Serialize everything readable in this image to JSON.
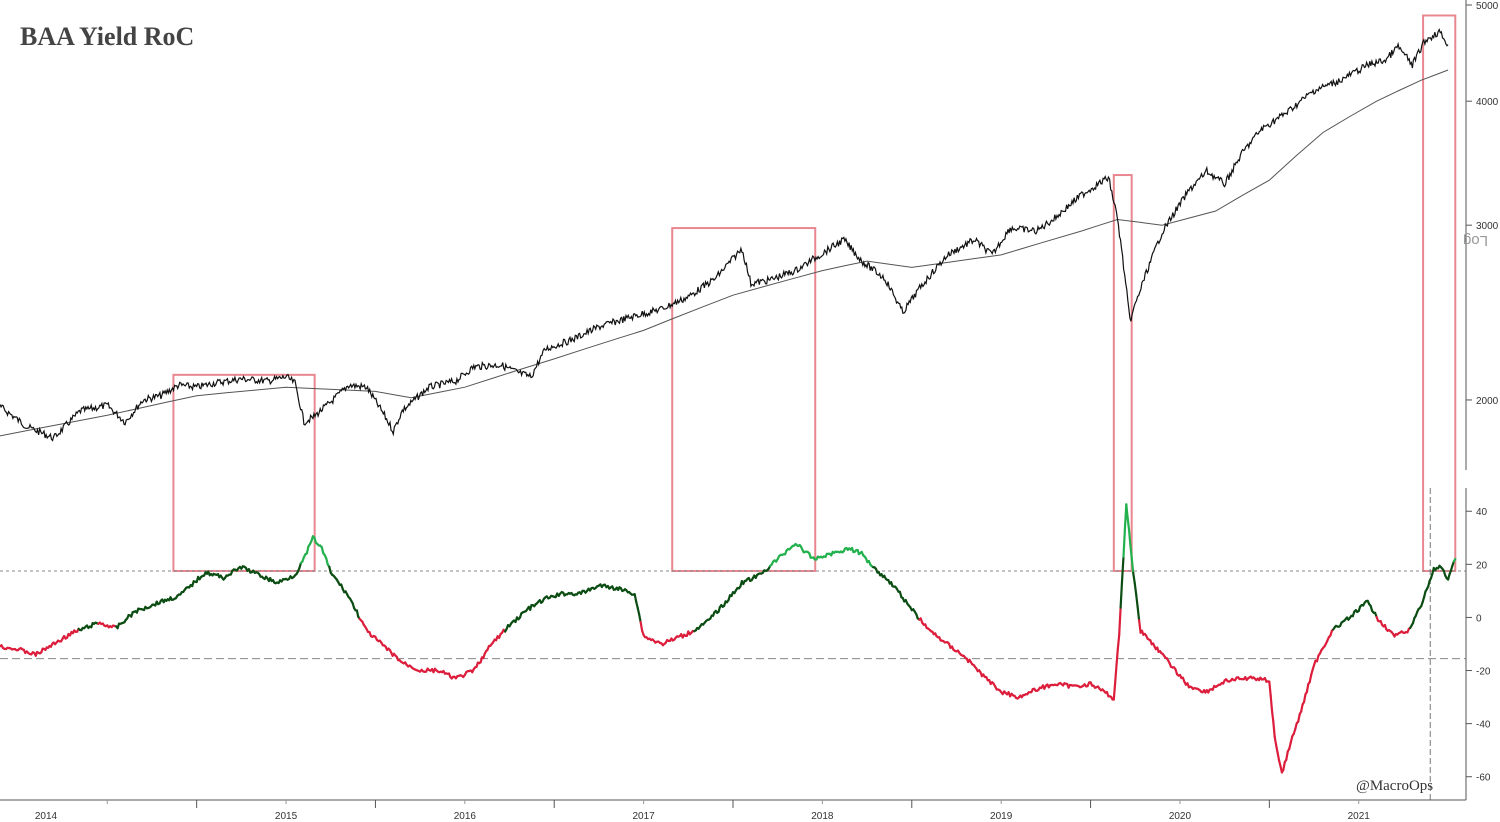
{
  "chart_data": [
    {
      "type": "line",
      "title": "BAA Yield RoC",
      "yscale": "log",
      "yaxis_label": "Log",
      "ylim": [
        1700,
        5000
      ],
      "yticks": [
        2000,
        3000,
        4000,
        5000
      ],
      "x_categories": [
        "2014",
        "2015",
        "2016",
        "2017",
        "2018",
        "2019",
        "2020",
        "2021"
      ],
      "series": [
        {
          "role": "price",
          "color": "#111111",
          "points": [
            [
              2013.9,
              1970
            ],
            [
              2014.05,
              1880
            ],
            [
              2014.2,
              1830
            ],
            [
              2014.35,
              1950
            ],
            [
              2014.5,
              1975
            ],
            [
              2014.6,
              1900
            ],
            [
              2014.7,
              2000
            ],
            [
              2014.8,
              2020
            ],
            [
              2014.9,
              2070
            ],
            [
              2015.0,
              2060
            ],
            [
              2015.1,
              2080
            ],
            [
              2015.25,
              2100
            ],
            [
              2015.4,
              2090
            ],
            [
              2015.5,
              2110
            ],
            [
              2015.55,
              2080
            ],
            [
              2015.6,
              1900
            ],
            [
              2015.65,
              1920
            ],
            [
              2015.75,
              1990
            ],
            [
              2015.85,
              2070
            ],
            [
              2015.95,
              2060
            ],
            [
              2016.05,
              1930
            ],
            [
              2016.1,
              1860
            ],
            [
              2016.15,
              1950
            ],
            [
              2016.3,
              2060
            ],
            [
              2016.45,
              2090
            ],
            [
              2016.55,
              2160
            ],
            [
              2016.7,
              2170
            ],
            [
              2016.8,
              2130
            ],
            [
              2016.87,
              2110
            ],
            [
              2016.95,
              2250
            ],
            [
              2017.1,
              2300
            ],
            [
              2017.25,
              2370
            ],
            [
              2017.45,
              2430
            ],
            [
              2017.6,
              2470
            ],
            [
              2017.75,
              2540
            ],
            [
              2017.9,
              2650
            ],
            [
              2018.05,
              2840
            ],
            [
              2018.1,
              2620
            ],
            [
              2018.2,
              2640
            ],
            [
              2018.35,
              2700
            ],
            [
              2018.5,
              2810
            ],
            [
              2018.62,
              2900
            ],
            [
              2018.72,
              2760
            ],
            [
              2018.85,
              2650
            ],
            [
              2018.95,
              2450
            ],
            [
              2019.05,
              2600
            ],
            [
              2019.2,
              2800
            ],
            [
              2019.35,
              2900
            ],
            [
              2019.45,
              2800
            ],
            [
              2019.55,
              2980
            ],
            [
              2019.7,
              2960
            ],
            [
              2019.8,
              3050
            ],
            [
              2019.95,
              3220
            ],
            [
              2020.1,
              3350
            ],
            [
              2020.15,
              3050
            ],
            [
              2020.22,
              2400
            ],
            [
              2020.3,
              2650
            ],
            [
              2020.4,
              2950
            ],
            [
              2020.55,
              3250
            ],
            [
              2020.65,
              3400
            ],
            [
              2020.75,
              3300
            ],
            [
              2020.85,
              3550
            ],
            [
              2020.95,
              3740
            ],
            [
              2021.1,
              3900
            ],
            [
              2021.25,
              4100
            ],
            [
              2021.4,
              4200
            ],
            [
              2021.55,
              4350
            ],
            [
              2021.65,
              4400
            ],
            [
              2021.72,
              4540
            ],
            [
              2021.8,
              4350
            ],
            [
              2021.87,
              4600
            ],
            [
              2021.95,
              4700
            ],
            [
              2022.0,
              4560
            ]
          ]
        },
        {
          "role": "moving-average",
          "color": "#333333",
          "points": [
            [
              2013.9,
              1840
            ],
            [
              2014.5,
              1930
            ],
            [
              2015.0,
              2020
            ],
            [
              2015.5,
              2060
            ],
            [
              2016.0,
              2040
            ],
            [
              2016.2,
              2010
            ],
            [
              2016.5,
              2060
            ],
            [
              2017.0,
              2200
            ],
            [
              2017.5,
              2350
            ],
            [
              2018.0,
              2550
            ],
            [
              2018.5,
              2700
            ],
            [
              2018.75,
              2760
            ],
            [
              2019.0,
              2720
            ],
            [
              2019.5,
              2800
            ],
            [
              2019.95,
              2960
            ],
            [
              2020.15,
              3040
            ],
            [
              2020.4,
              3000
            ],
            [
              2020.7,
              3100
            ],
            [
              2021.0,
              3330
            ],
            [
              2021.3,
              3720
            ],
            [
              2021.6,
              4000
            ],
            [
              2021.85,
              4200
            ],
            [
              2022.0,
              4300
            ]
          ]
        }
      ]
    },
    {
      "type": "line",
      "ylim": [
        -65,
        48
      ],
      "yticks": [
        40,
        20,
        0,
        -20,
        -40,
        -60
      ],
      "threshold_lines": [
        17.5,
        -15.5
      ],
      "colors": {
        "above_high": "#22b14c",
        "neutral_up": "#0b4d12",
        "low": "#dc1e3c"
      },
      "series": [
        {
          "role": "baa-yield-roc",
          "points": [
            [
              2013.9,
              -11
            ],
            [
              2014.0,
              -12
            ],
            [
              2014.1,
              -14
            ],
            [
              2014.2,
              -10
            ],
            [
              2014.3,
              -6
            ],
            [
              2014.45,
              -2
            ],
            [
              2014.55,
              -4
            ],
            [
              2014.65,
              2
            ],
            [
              2014.8,
              6
            ],
            [
              2014.9,
              8
            ],
            [
              2015.0,
              14
            ],
            [
              2015.05,
              17
            ],
            [
              2015.15,
              15
            ],
            [
              2015.25,
              19
            ],
            [
              2015.35,
              16
            ],
            [
              2015.45,
              13
            ],
            [
              2015.55,
              16
            ],
            [
              2015.6,
              22
            ],
            [
              2015.65,
              30
            ],
            [
              2015.7,
              26
            ],
            [
              2015.75,
              17
            ],
            [
              2015.85,
              8
            ],
            [
              2015.95,
              -5
            ],
            [
              2016.05,
              -11
            ],
            [
              2016.15,
              -17
            ],
            [
              2016.25,
              -20
            ],
            [
              2016.35,
              -20
            ],
            [
              2016.45,
              -23
            ],
            [
              2016.55,
              -20
            ],
            [
              2016.65,
              -10
            ],
            [
              2016.75,
              -3
            ],
            [
              2016.85,
              3
            ],
            [
              2016.95,
              7
            ],
            [
              2017.05,
              9
            ],
            [
              2017.15,
              9
            ],
            [
              2017.25,
              12
            ],
            [
              2017.35,
              11
            ],
            [
              2017.45,
              9
            ],
            [
              2017.5,
              -7
            ],
            [
              2017.6,
              -10
            ],
            [
              2017.75,
              -6
            ],
            [
              2017.85,
              -2
            ],
            [
              2017.95,
              5
            ],
            [
              2018.05,
              13
            ],
            [
              2018.15,
              16
            ],
            [
              2018.25,
              22
            ],
            [
              2018.35,
              28
            ],
            [
              2018.45,
              22
            ],
            [
              2018.55,
              24
            ],
            [
              2018.65,
              26
            ],
            [
              2018.72,
              24
            ],
            [
              2018.8,
              18
            ],
            [
              2018.9,
              12
            ],
            [
              2019.0,
              3
            ],
            [
              2019.1,
              -5
            ],
            [
              2019.2,
              -10
            ],
            [
              2019.3,
              -15
            ],
            [
              2019.4,
              -22
            ],
            [
              2019.5,
              -28
            ],
            [
              2019.6,
              -30
            ],
            [
              2019.7,
              -27
            ],
            [
              2019.8,
              -25
            ],
            [
              2019.9,
              -26
            ],
            [
              2020.0,
              -25
            ],
            [
              2020.1,
              -29
            ],
            [
              2020.13,
              -31
            ],
            [
              2020.16,
              -6
            ],
            [
              2020.2,
              43
            ],
            [
              2020.23,
              22
            ],
            [
              2020.28,
              -5
            ],
            [
              2020.35,
              -10
            ],
            [
              2020.45,
              -18
            ],
            [
              2020.55,
              -26
            ],
            [
              2020.65,
              -28
            ],
            [
              2020.75,
              -24
            ],
            [
              2020.85,
              -23
            ],
            [
              2020.95,
              -23
            ],
            [
              2021.0,
              -24
            ],
            [
              2021.03,
              -45
            ],
            [
              2021.07,
              -59
            ],
            [
              2021.12,
              -47
            ],
            [
              2021.17,
              -37
            ],
            [
              2021.25,
              -18
            ],
            [
              2021.35,
              -5
            ],
            [
              2021.45,
              0
            ],
            [
              2021.55,
              6
            ],
            [
              2021.6,
              0
            ],
            [
              2021.7,
              -7
            ],
            [
              2021.78,
              -5
            ],
            [
              2021.85,
              5
            ],
            [
              2021.92,
              18
            ],
            [
              2021.96,
              19
            ],
            [
              2022.0,
              14
            ],
            [
              2022.04,
              22
            ]
          ]
        }
      ],
      "credit": "@MacroOps"
    }
  ]
}
